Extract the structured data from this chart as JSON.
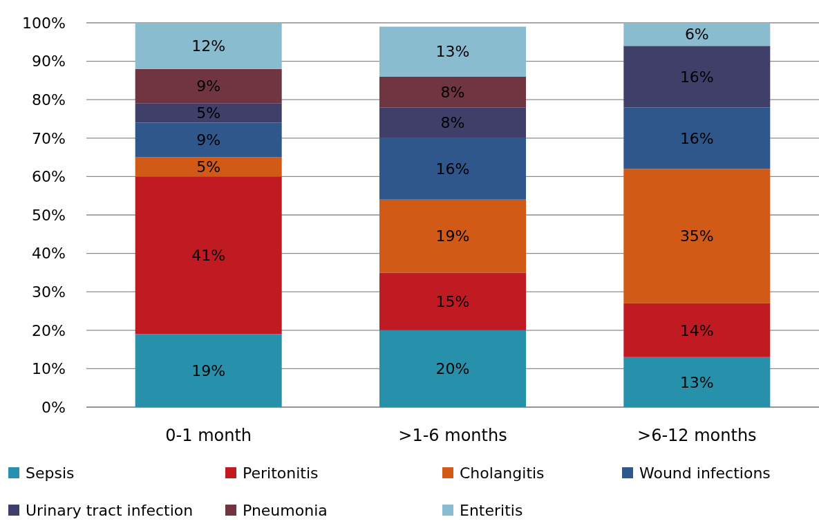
{
  "chart_data": {
    "type": "bar",
    "stacked": true,
    "categories": [
      "0-1 month",
      ">1-6 months",
      ">6-12 months"
    ],
    "series": [
      {
        "name": "Sepsis",
        "color": "#2790ab",
        "values": [
          19,
          20,
          13
        ],
        "value_labels": [
          "19%",
          "20%",
          "13%"
        ]
      },
      {
        "name": "Peritonitis",
        "color": "#c01b23",
        "values": [
          41,
          15,
          14
        ],
        "value_labels": [
          "41%",
          "15%",
          "14%"
        ]
      },
      {
        "name": "Cholangitis",
        "color": "#d05a16",
        "values": [
          5,
          19,
          35
        ],
        "value_labels": [
          "5%",
          "19%",
          "35%"
        ]
      },
      {
        "name": "Wound infections",
        "color": "#30578b",
        "values": [
          9,
          16,
          16
        ],
        "value_labels": [
          "9%",
          "16%",
          "16%"
        ]
      },
      {
        "name": "Urinary tract infection",
        "color": "#403f69",
        "values": [
          5,
          8,
          16
        ],
        "value_labels": [
          "5%",
          "8%",
          "16%"
        ]
      },
      {
        "name": "Pneumonia",
        "color": "#6f3540",
        "values": [
          9,
          8,
          null
        ],
        "value_labels": [
          "9%",
          "8%",
          null
        ]
      },
      {
        "name": "Enteritis",
        "color": "#8abccf",
        "values": [
          12,
          13,
          6
        ],
        "value_labels": [
          "12%",
          "13%",
          "6%"
        ]
      }
    ],
    "ylim": [
      0,
      100
    ],
    "yticks": [
      {
        "value": 0,
        "label": "0%"
      },
      {
        "value": 10,
        "label": "10%"
      },
      {
        "value": 20,
        "label": "20%"
      },
      {
        "value": 30,
        "label": "30%"
      },
      {
        "value": 40,
        "label": "40%"
      },
      {
        "value": 50,
        "label": "50%"
      },
      {
        "value": 60,
        "label": "60%"
      },
      {
        "value": 70,
        "label": "70%"
      },
      {
        "value": 80,
        "label": "80%"
      },
      {
        "value": 90,
        "label": "90%"
      },
      {
        "value": 100,
        "label": "100%"
      }
    ],
    "grid": "y",
    "legend": "bottom"
  }
}
